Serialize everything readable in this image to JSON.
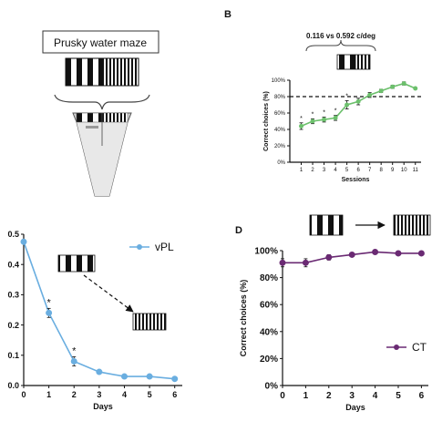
{
  "panel_a": {
    "title": "Prusky water maze",
    "pool_label": "",
    "platform_label": ""
  },
  "panel_b": {
    "letter": "B"
  },
  "panel_d": {
    "letter": "D"
  },
  "chart_data": [
    {
      "id": "B",
      "type": "line",
      "title": "",
      "annotation": "0.116 vs 0.592 c/deg",
      "xlabel": "Sessions",
      "ylabel": "Correct choices (%)",
      "x": [
        1,
        2,
        3,
        4,
        5,
        6,
        7,
        8,
        9,
        10,
        11
      ],
      "x_ticks": [
        "1",
        "2",
        "3",
        "4",
        "5",
        "6",
        "7",
        "8",
        "9",
        "10",
        "11"
      ],
      "xlim": [
        0,
        11.5
      ],
      "ylim": [
        0,
        100
      ],
      "y_ticks": [
        "0%",
        "20%",
        "40%",
        "60%",
        "80%",
        "100%"
      ],
      "reference_line": 80,
      "series": [
        {
          "name": "",
          "color": "#6cc06c",
          "values": [
            44,
            50,
            52,
            54,
            70,
            74,
            82,
            87,
            92,
            96,
            90
          ],
          "errors": [
            4,
            3,
            3,
            3,
            5,
            4,
            3,
            2,
            2,
            2,
            0
          ]
        }
      ],
      "significance_marks": [
        {
          "x": 1,
          "label": "*"
        },
        {
          "x": 2,
          "label": "*"
        },
        {
          "x": 3,
          "label": "*"
        },
        {
          "x": 4,
          "label": "*"
        },
        {
          "x": 5,
          "label": "*"
        }
      ],
      "grid": false
    },
    {
      "id": "C",
      "type": "line",
      "title": "",
      "xlabel": "Days",
      "ylabel": "",
      "x": [
        0,
        1,
        2,
        3,
        4,
        5,
        6
      ],
      "x_ticks": [
        "0",
        "1",
        "2",
        "3",
        "4",
        "5",
        "6"
      ],
      "xlim": [
        0,
        6.3
      ],
      "ylim": [
        0,
        0.5
      ],
      "y_ticks": [
        "0.0",
        "0.1",
        "0.2",
        "0.3",
        "0.4",
        "0.5"
      ],
      "series": [
        {
          "name": "vPL",
          "color": "#6aaee0",
          "values": [
            0.475,
            0.24,
            0.08,
            0.045,
            0.03,
            0.03,
            0.022
          ],
          "errors": [
            0,
            0.015,
            0.015,
            0.005,
            0.003,
            0.003,
            0.002
          ]
        }
      ],
      "significance_marks": [
        {
          "x": 1,
          "label": "*"
        },
        {
          "x": 2,
          "label": "*"
        }
      ],
      "legend": "top-right",
      "grid": false
    },
    {
      "id": "D",
      "type": "line",
      "title": "",
      "xlabel": "Days",
      "ylabel": "Correct choices (%)",
      "x": [
        0,
        1,
        2,
        3,
        4,
        5,
        6
      ],
      "x_ticks": [
        "0",
        "1",
        "2",
        "3",
        "4",
        "5",
        "6"
      ],
      "xlim": [
        0,
        6.3
      ],
      "ylim": [
        0,
        100
      ],
      "y_ticks": [
        "0%",
        "20%",
        "40%",
        "60%",
        "80%",
        "100%"
      ],
      "series": [
        {
          "name": "CT",
          "color": "#6a2a73",
          "values": [
            91,
            91,
            95,
            97,
            99,
            98,
            98
          ],
          "errors": [
            3,
            3,
            2,
            1,
            1,
            1,
            1
          ]
        }
      ],
      "legend": "bottom-right",
      "grid": false
    }
  ]
}
